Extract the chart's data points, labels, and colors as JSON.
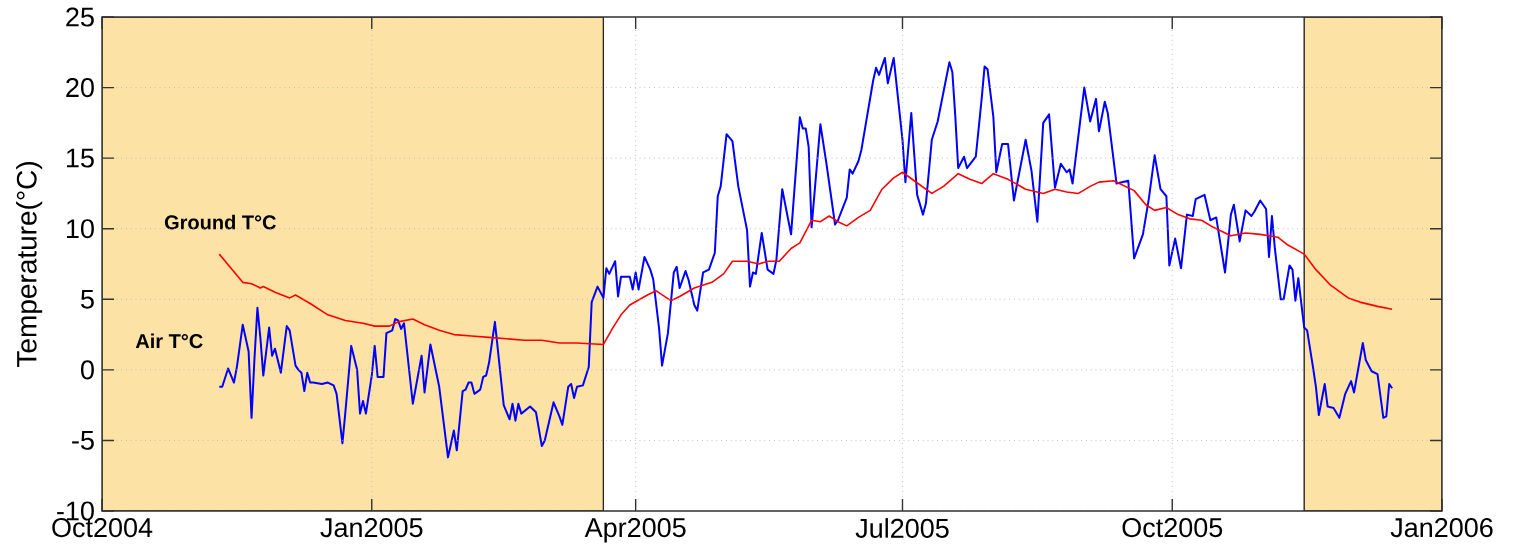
{
  "chart_data": {
    "type": "line",
    "ylabel": "Temperature(°C)",
    "xlim": [
      "2004-10-01",
      "2006-01-01"
    ],
    "ylim": [
      -10,
      25
    ],
    "xticks": [
      {
        "value": "2004-10-01",
        "label": "Oct2004"
      },
      {
        "value": "2005-01-01",
        "label": "Jan2005"
      },
      {
        "value": "2005-04-01",
        "label": "Apr2005"
      },
      {
        "value": "2005-07-01",
        "label": "Jul2005"
      },
      {
        "value": "2005-10-01",
        "label": "Oct2005"
      },
      {
        "value": "2006-01-01",
        "label": "Jan2006"
      }
    ],
    "yticks": [
      -10,
      -5,
      0,
      5,
      10,
      15,
      20,
      25
    ],
    "grid": true,
    "bands": [
      {
        "axis": "x",
        "from": "2004-10-01",
        "to": "2005-03-21",
        "color": "#fce2a5"
      },
      {
        "axis": "x",
        "from": "2005-11-15",
        "to": "2006-01-01",
        "color": "#fce2a5"
      }
    ],
    "series": [
      {
        "name": "Air T°C",
        "color": "#0000ff",
        "x": [
          "2004-11-10",
          "2004-11-11",
          "2004-11-13",
          "2004-11-15",
          "2004-11-16",
          "2004-11-18",
          "2004-11-20",
          "2004-11-21",
          "2004-11-22",
          "2004-11-23",
          "2004-11-24",
          "2004-11-25",
          "2004-11-27",
          "2004-11-28",
          "2004-11-29",
          "2004-12-01",
          "2004-12-03",
          "2004-12-04",
          "2004-12-06",
          "2004-12-07",
          "2004-12-08",
          "2004-12-09",
          "2004-12-10",
          "2004-12-11",
          "2004-12-12",
          "2004-12-15",
          "2004-12-17",
          "2004-12-19",
          "2004-12-20",
          "2004-12-22",
          "2004-12-23",
          "2004-12-25",
          "2004-12-27",
          "2004-12-28",
          "2004-12-29",
          "2004-12-30",
          "2005-01-01",
          "2005-01-02",
          "2005-01-03",
          "2005-01-05",
          "2005-01-06",
          "2005-01-08",
          "2005-01-09",
          "2005-01-10",
          "2005-01-11",
          "2005-01-12",
          "2005-01-15",
          "2005-01-18",
          "2005-01-19",
          "2005-01-21",
          "2005-01-24",
          "2005-01-27",
          "2005-01-29",
          "2005-01-30",
          "2005-02-01",
          "2005-02-02",
          "2005-02-03",
          "2005-02-04",
          "2005-02-05",
          "2005-02-07",
          "2005-02-08",
          "2005-02-09",
          "2005-02-10",
          "2005-02-12",
          "2005-02-15",
          "2005-02-17",
          "2005-02-18",
          "2005-02-19",
          "2005-02-20",
          "2005-02-21",
          "2005-02-24",
          "2005-02-26",
          "2005-02-28",
          "2005-03-01",
          "2005-03-04",
          "2005-03-06",
          "2005-03-07",
          "2005-03-09",
          "2005-03-10",
          "2005-03-11",
          "2005-03-12",
          "2005-03-14",
          "2005-03-16",
          "2005-03-17",
          "2005-03-19",
          "2005-03-21",
          "2005-03-22",
          "2005-03-23",
          "2005-03-25",
          "2005-03-26",
          "2005-03-27",
          "2005-03-30",
          "2005-03-31",
          "2005-04-01",
          "2005-04-02",
          "2005-04-04",
          "2005-04-06",
          "2005-04-07",
          "2005-04-09",
          "2005-04-10",
          "2005-04-12",
          "2005-04-14",
          "2005-04-15",
          "2005-04-16",
          "2005-04-18",
          "2005-04-19",
          "2005-04-21",
          "2005-04-22",
          "2005-04-24",
          "2005-04-26",
          "2005-04-27",
          "2005-04-28",
          "2005-04-29",
          "2005-04-30",
          "2005-05-02",
          "2005-05-04",
          "2005-05-06",
          "2005-05-09",
          "2005-05-10",
          "2005-05-11",
          "2005-05-12",
          "2005-05-14",
          "2005-05-16",
          "2005-05-18",
          "2005-05-19",
          "2005-05-21",
          "2005-05-24",
          "2005-05-27",
          "2005-05-28",
          "2005-05-29",
          "2005-05-30",
          "2005-05-31",
          "2005-06-03",
          "2005-06-05",
          "2005-06-08",
          "2005-06-09",
          "2005-06-12",
          "2005-06-13",
          "2005-06-14",
          "2005-06-16",
          "2005-06-17",
          "2005-06-21",
          "2005-06-22",
          "2005-06-23",
          "2005-06-25",
          "2005-06-26",
          "2005-06-28",
          "2005-07-01",
          "2005-07-02",
          "2005-07-04",
          "2005-07-06",
          "2005-07-08",
          "2005-07-09",
          "2005-07-11",
          "2005-07-13",
          "2005-07-15",
          "2005-07-17",
          "2005-07-18",
          "2005-07-19",
          "2005-07-20",
          "2005-07-22",
          "2005-07-23",
          "2005-07-26",
          "2005-07-28",
          "2005-07-29",
          "2005-07-30",
          "2005-08-01",
          "2005-08-02",
          "2005-08-04",
          "2005-08-06",
          "2005-08-08",
          "2005-08-12",
          "2005-08-14",
          "2005-08-16",
          "2005-08-18",
          "2005-08-20",
          "2005-08-22",
          "2005-08-24",
          "2005-08-26",
          "2005-08-27",
          "2005-08-28",
          "2005-09-01",
          "2005-09-03",
          "2005-09-05",
          "2005-09-06",
          "2005-09-08",
          "2005-09-09",
          "2005-09-12",
          "2005-09-14",
          "2005-09-16",
          "2005-09-18",
          "2005-09-21",
          "2005-09-23",
          "2005-09-25",
          "2005-09-27",
          "2005-09-29",
          "2005-09-30",
          "2005-10-02",
          "2005-10-04",
          "2005-10-06",
          "2005-10-08",
          "2005-10-09",
          "2005-10-12",
          "2005-10-14",
          "2005-10-16",
          "2005-10-19",
          "2005-10-21",
          "2005-10-22",
          "2005-10-24",
          "2005-10-26",
          "2005-10-28",
          "2005-10-29",
          "2005-10-31",
          "2005-11-02",
          "2005-11-03",
          "2005-11-04",
          "2005-11-05",
          "2005-11-07",
          "2005-11-08",
          "2005-11-10",
          "2005-11-11",
          "2005-11-12",
          "2005-11-13",
          "2005-11-15",
          "2005-11-16",
          "2005-11-18",
          "2005-11-19",
          "2005-11-20",
          "2005-11-22",
          "2005-11-23",
          "2005-11-25",
          "2005-11-27",
          "2005-11-29",
          "2005-12-01",
          "2005-12-02",
          "2005-12-05",
          "2005-12-06",
          "2005-12-08",
          "2005-12-10",
          "2005-12-12",
          "2005-12-13",
          "2005-12-14",
          "2005-12-15"
        ],
        "values": [
          -1.2,
          -1.2,
          0.1,
          -0.9,
          0.2,
          3.2,
          1.3,
          -3.4,
          0.8,
          4.4,
          2.3,
          -0.4,
          3.0,
          1.0,
          1.5,
          -0.2,
          3.1,
          2.8,
          0.3,
          0.0,
          -0.2,
          -1.5,
          -0.2,
          -0.9,
          -0.9,
          -1.0,
          -0.9,
          -1.1,
          -1.7,
          -5.2,
          -3.0,
          1.7,
          0.0,
          -3.1,
          -2.2,
          -3.1,
          -0.4,
          1.7,
          -0.5,
          -0.5,
          2.6,
          2.8,
          3.6,
          3.5,
          2.9,
          3.3,
          -2.4,
          1.0,
          -1.6,
          1.8,
          -1.2,
          -6.2,
          -4.3,
          -5.7,
          -1.5,
          -1.4,
          -0.9,
          -0.9,
          -1.7,
          -1.4,
          -0.5,
          -0.4,
          0.5,
          3.4,
          -2.5,
          -3.5,
          -2.4,
          -3.6,
          -2.4,
          -3.1,
          -2.6,
          -3.0,
          -5.4,
          -5.0,
          -2.3,
          -3.3,
          -3.9,
          -1.2,
          -1.0,
          -2.0,
          -1.2,
          -1.1,
          0.2,
          4.8,
          5.9,
          5.1,
          7.2,
          6.8,
          7.7,
          5.2,
          6.6,
          6.6,
          5.7,
          6.9,
          5.7,
          8.0,
          7.1,
          6.4,
          2.9,
          0.3,
          2.6,
          6.9,
          7.3,
          5.8,
          7.0,
          6.4,
          4.6,
          4.2,
          6.9,
          7.1,
          7.7,
          8.3,
          12.3,
          13.0,
          16.7,
          16.2,
          13.0,
          9.9,
          5.9,
          6.9,
          6.8,
          9.7,
          7.1,
          6.8,
          7.8,
          12.8,
          9.6,
          17.9,
          17.1,
          17.1,
          15.8,
          10.1,
          17.4,
          14.7,
          10.3,
          10.6,
          12.2,
          14.2,
          13.9,
          14.8,
          15.6,
          20.5,
          21.4,
          20.9,
          22.1,
          20.3,
          22.1,
          16.3,
          13.3,
          18.2,
          12.4,
          11.0,
          11.8,
          16.3,
          17.6,
          19.7,
          21.8,
          21.1,
          18.0,
          14.3,
          15.1,
          14.3,
          15.1,
          19.2,
          21.5,
          21.3,
          17.9,
          14.0,
          16.0,
          16.0,
          12.0,
          16.3,
          14.1,
          10.5,
          17.5,
          18.1,
          12.9,
          14.6,
          14.0,
          14.2,
          13.2,
          20.0,
          17.6,
          19.2,
          16.9,
          19.0,
          18.2,
          13.2,
          13.3,
          13.4,
          7.9,
          9.6,
          12.1,
          15.2,
          12.8,
          12.3,
          7.4,
          9.3,
          7.2,
          11.0,
          10.9,
          12.1,
          12.4,
          10.6,
          10.8,
          6.9,
          11.0,
          11.7,
          9.1,
          11.3,
          10.9,
          11.2,
          12.0,
          11.4,
          8.0,
          10.9,
          8.6,
          5.0,
          5.0,
          7.4,
          7.1,
          4.9,
          6.5,
          3.0,
          2.8,
          0.2,
          -1.2,
          -3.2,
          -1.0,
          -2.6,
          -2.7,
          -3.4,
          -1.7,
          -0.8,
          -1.6,
          1.9,
          0.7,
          -0.1,
          -0.3,
          -3.4,
          -3.3,
          -1.0,
          -1.3
        ]
      },
      {
        "name": "Ground T°C",
        "color": "#ff0000",
        "x": [
          "2004-11-10",
          "2004-11-14",
          "2004-11-18",
          "2004-11-21",
          "2004-11-24",
          "2004-11-25",
          "2004-11-29",
          "2004-12-04",
          "2004-12-06",
          "2004-12-11",
          "2004-12-17",
          "2004-12-23",
          "2004-12-29",
          "2005-01-02",
          "2005-01-07",
          "2005-01-10",
          "2005-01-15",
          "2005-01-19",
          "2005-01-24",
          "2005-01-29",
          "2005-02-04",
          "2005-02-10",
          "2005-02-16",
          "2005-02-22",
          "2005-02-28",
          "2005-03-06",
          "2005-03-12",
          "2005-03-21",
          "2005-03-24",
          "2005-03-27",
          "2005-03-30",
          "2005-04-05",
          "2005-04-08",
          "2005-04-13",
          "2005-04-16",
          "2005-04-21",
          "2005-04-27",
          "2005-05-01",
          "2005-05-04",
          "2005-05-09",
          "2005-05-13",
          "2005-05-16",
          "2005-05-20",
          "2005-05-24",
          "2005-05-27",
          "2005-05-31",
          "2005-06-03",
          "2005-06-06",
          "2005-06-09",
          "2005-06-12",
          "2005-06-16",
          "2005-06-20",
          "2005-06-24",
          "2005-06-28",
          "2005-07-01",
          "2005-07-05",
          "2005-07-11",
          "2005-07-15",
          "2005-07-20",
          "2005-07-24",
          "2005-07-28",
          "2005-08-01",
          "2005-08-06",
          "2005-08-12",
          "2005-08-18",
          "2005-08-22",
          "2005-08-26",
          "2005-08-30",
          "2005-09-03",
          "2005-09-06",
          "2005-09-11",
          "2005-09-14",
          "2005-09-18",
          "2005-09-22",
          "2005-09-25",
          "2005-09-29",
          "2005-10-03",
          "2005-10-07",
          "2005-10-11",
          "2005-10-15",
          "2005-10-21",
          "2005-10-26",
          "2005-10-31",
          "2005-11-06",
          "2005-11-09",
          "2005-11-15",
          "2005-11-19",
          "2005-11-24",
          "2005-11-30",
          "2005-12-04",
          "2005-12-10",
          "2005-12-15"
        ],
        "values": [
          8.2,
          7.2,
          6.2,
          6.1,
          5.8,
          5.9,
          5.5,
          5.1,
          5.3,
          4.7,
          3.9,
          3.5,
          3.3,
          3.1,
          3.1,
          3.4,
          3.6,
          3.2,
          2.8,
          2.5,
          2.4,
          2.3,
          2.2,
          2.1,
          2.1,
          1.9,
          1.9,
          1.8,
          2.9,
          3.9,
          4.6,
          5.3,
          5.6,
          4.9,
          5.2,
          5.8,
          6.2,
          6.8,
          7.7,
          7.7,
          7.5,
          7.7,
          7.7,
          8.6,
          9.0,
          10.6,
          10.5,
          10.9,
          10.5,
          10.2,
          10.8,
          11.3,
          12.8,
          13.6,
          14.0,
          13.4,
          12.5,
          13.0,
          13.9,
          13.5,
          13.2,
          13.9,
          13.5,
          12.8,
          12.5,
          12.8,
          12.6,
          12.5,
          13.0,
          13.3,
          13.4,
          13.1,
          12.7,
          11.7,
          11.3,
          11.5,
          11.0,
          10.7,
          10.6,
          10.1,
          9.5,
          9.7,
          9.6,
          9.4,
          8.9,
          8.2,
          7.1,
          6.0,
          5.1,
          4.8,
          4.5,
          4.3
        ]
      }
    ]
  }
}
